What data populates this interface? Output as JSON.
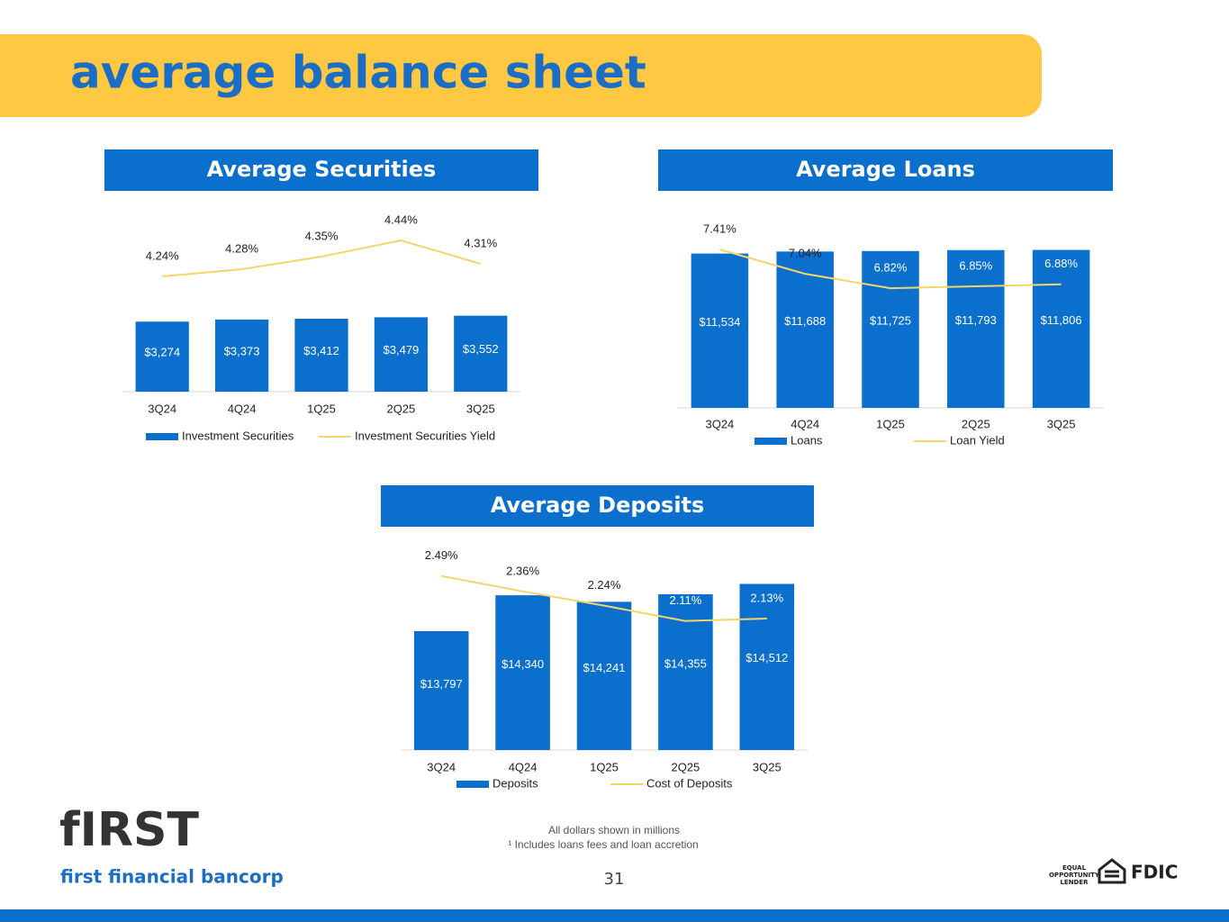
{
  "title": "average balance sheet",
  "chart_data": [
    {
      "type": "bar",
      "title": "Average Securities",
      "categories": [
        "3Q24",
        "4Q24",
        "1Q25",
        "2Q25",
        "3Q25"
      ],
      "series": [
        {
          "name": "Investment Securities",
          "type": "bar",
          "color": "#0b6fce",
          "values": [
            3274,
            3373,
            3412,
            3479,
            3552
          ],
          "value_labels": [
            "$3,274",
            "$3,373",
            "$3,412",
            "$3,479",
            "$3,552"
          ]
        },
        {
          "name": "Investment Securities Yield",
          "type": "line",
          "axis": "y2",
          "color": "#f7d46a",
          "values": [
            4.24,
            4.28,
            4.35,
            4.44,
            4.31
          ],
          "value_labels": [
            "4.24%",
            "4.28%",
            "4.35%",
            "4.44%",
            "4.31%"
          ]
        }
      ],
      "ylim": [
        0,
        8000
      ],
      "y2lim": [
        3.6,
        4.55
      ]
    },
    {
      "type": "bar",
      "title": "Average Loans",
      "categories": [
        "3Q24",
        "4Q24",
        "1Q25",
        "2Q25",
        "3Q25"
      ],
      "series": [
        {
          "name": "Loans",
          "type": "bar",
          "color": "#0b6fce",
          "values": [
            11534,
            11688,
            11725,
            11793,
            11806
          ],
          "value_labels": [
            "$11,534",
            "$11,688",
            "$11,725",
            "$11,793",
            "$11,806"
          ]
        },
        {
          "name": "Loan Yield",
          "type": "line",
          "axis": "y2",
          "color": "#f7d46a",
          "values": [
            7.41,
            7.04,
            6.82,
            6.85,
            6.88
          ],
          "value_labels": [
            "7.41%",
            "7.04%",
            "6.82%",
            "6.85%",
            "6.88%"
          ]
        }
      ],
      "ylim": [
        0,
        14000
      ],
      "y2lim": [
        5,
        7.85
      ]
    },
    {
      "type": "bar",
      "title": "Average Deposits",
      "categories": [
        "3Q24",
        "4Q24",
        "1Q25",
        "2Q25",
        "3Q25"
      ],
      "series": [
        {
          "name": "Deposits",
          "type": "bar",
          "color": "#0b6fce",
          "values": [
            13797,
            14340,
            14241,
            14355,
            14512
          ],
          "value_labels": [
            "$13,797",
            "$14,340",
            "$14,241",
            "$14,355",
            "$14,512"
          ]
        },
        {
          "name": "Cost of Deposits",
          "type": "line",
          "axis": "y2",
          "color": "#f7d46a",
          "values": [
            2.49,
            2.36,
            2.24,
            2.11,
            2.13
          ],
          "value_labels": [
            "2.49%",
            "2.36%",
            "2.24%",
            "2.11%",
            "2.13%"
          ]
        }
      ],
      "ylim": [
        12000,
        14900
      ],
      "y2lim": [
        1.02,
        2.64
      ]
    }
  ],
  "footer": {
    "notes": [
      "All dollars shown in millions",
      "¹ Includes loans fees and loan accretion"
    ],
    "page": "31",
    "logo": "fIRST",
    "company": "first financial bancorp",
    "badges": [
      "EQUAL",
      "OPPORTUNITY",
      "LENDER",
      "FDIC"
    ]
  }
}
